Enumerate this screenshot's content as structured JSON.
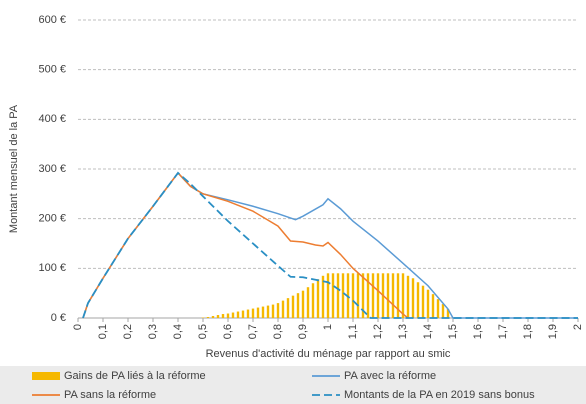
{
  "chart_data": {
    "type": "line",
    "xlabel": "Revenus d'activité du ménage par rapport au smic",
    "ylabel": "Montant mensuel de la PA",
    "xlim": [
      0,
      2
    ],
    "ylim": [
      0,
      600
    ],
    "xticks": [
      0,
      {
        "value": 0.1,
        "label": "0,1"
      },
      {
        "value": 0.2,
        "label": "0,2"
      },
      {
        "value": 0.3,
        "label": "0,3"
      },
      {
        "value": 0.4,
        "label": "0,4"
      },
      {
        "value": 0.5,
        "label": "0,5"
      },
      {
        "value": 0.6,
        "label": "0,6"
      },
      {
        "value": 0.7,
        "label": "0,7"
      },
      {
        "value": 0.8,
        "label": "0,8"
      },
      {
        "value": 0.9,
        "label": "0,9"
      },
      1,
      {
        "value": 1.1,
        "label": "1,1"
      },
      {
        "value": 1.2,
        "label": "1,2"
      },
      {
        "value": 1.3,
        "label": "1,3"
      },
      {
        "value": 1.4,
        "label": "1,4"
      },
      {
        "value": 1.5,
        "label": "1,5"
      },
      {
        "value": 1.6,
        "label": "1,6"
      },
      {
        "value": 1.7,
        "label": "1,7"
      },
      {
        "value": 1.8,
        "label": "1,8"
      },
      {
        "value": 1.9,
        "label": "1,9"
      },
      2
    ],
    "yticks": [
      {
        "value": 0,
        "label": "0 €"
      },
      {
        "value": 100,
        "label": "100 €"
      },
      {
        "value": 200,
        "label": "200 €"
      },
      {
        "value": 300,
        "label": "300 €"
      },
      {
        "value": 400,
        "label": "400 €"
      },
      {
        "value": 500,
        "label": "500 €"
      },
      {
        "value": 600,
        "label": "600 €"
      }
    ],
    "grid": true,
    "legend": "bottom",
    "series": [
      {
        "name": "Gains de PA liés à la réforme",
        "type": "bar",
        "color": "#f5b800",
        "x": [
          0.5,
          0.52,
          0.54,
          0.56,
          0.58,
          0.6,
          0.62,
          0.64,
          0.66,
          0.68,
          0.7,
          0.72,
          0.74,
          0.76,
          0.78,
          0.8,
          0.82,
          0.84,
          0.86,
          0.88,
          0.9,
          0.92,
          0.94,
          0.96,
          0.98,
          1.0,
          1.02,
          1.04,
          1.06,
          1.08,
          1.1,
          1.12,
          1.14,
          1.16,
          1.18,
          1.2,
          1.22,
          1.24,
          1.26,
          1.28,
          1.3,
          1.32,
          1.34,
          1.36,
          1.38,
          1.4,
          1.42,
          1.44,
          1.46,
          1.48
        ],
        "values": [
          1,
          2,
          4,
          6,
          8,
          9,
          11,
          13,
          15,
          17,
          19,
          21,
          23,
          25,
          27,
          30,
          35,
          40,
          45,
          50,
          55,
          62,
          70,
          78,
          85,
          90,
          90,
          90,
          90,
          90,
          90,
          90,
          90,
          90,
          90,
          90,
          90,
          90,
          90,
          90,
          90,
          85,
          80,
          72,
          65,
          57,
          48,
          38,
          28,
          18
        ]
      },
      {
        "name": "PA  avec la réforme",
        "type": "line",
        "color": "#5b9bd5",
        "x": [
          0.02,
          0.04,
          0.1,
          0.2,
          0.3,
          0.4,
          0.45,
          0.5,
          0.6,
          0.7,
          0.8,
          0.87,
          0.9,
          0.98,
          1.0,
          1.05,
          1.1,
          1.2,
          1.3,
          1.4,
          1.48,
          1.5,
          2.0
        ],
        "values": [
          0,
          30,
          80,
          160,
          225,
          292,
          265,
          250,
          238,
          225,
          210,
          198,
          205,
          228,
          240,
          220,
          195,
          155,
          110,
          65,
          18,
          0,
          0
        ]
      },
      {
        "name": "PA sans la réforme",
        "type": "line",
        "color": "#ed7d31",
        "x": [
          0.02,
          0.04,
          0.1,
          0.2,
          0.3,
          0.4,
          0.45,
          0.5,
          0.6,
          0.7,
          0.8,
          0.85,
          0.9,
          0.95,
          0.98,
          1.0,
          1.05,
          1.1,
          1.2,
          1.3,
          1.32
        ],
        "values": [
          0,
          30,
          80,
          160,
          225,
          292,
          265,
          250,
          235,
          215,
          185,
          155,
          153,
          147,
          145,
          152,
          128,
          100,
          55,
          8,
          0
        ]
      },
      {
        "name": "Montants de la PA en 2019 sans bonus",
        "type": "line",
        "dashed": true,
        "color": "#2a8fc4",
        "x": [
          0.02,
          0.04,
          0.1,
          0.2,
          0.3,
          0.4,
          0.45,
          0.5,
          0.6,
          0.7,
          0.8,
          0.85,
          0.9,
          0.95,
          1.0,
          1.05,
          1.1,
          1.15,
          1.17,
          2.0
        ],
        "values": [
          0,
          30,
          80,
          160,
          225,
          292,
          270,
          245,
          195,
          150,
          105,
          83,
          82,
          77,
          72,
          55,
          35,
          10,
          0,
          0
        ]
      }
    ]
  }
}
